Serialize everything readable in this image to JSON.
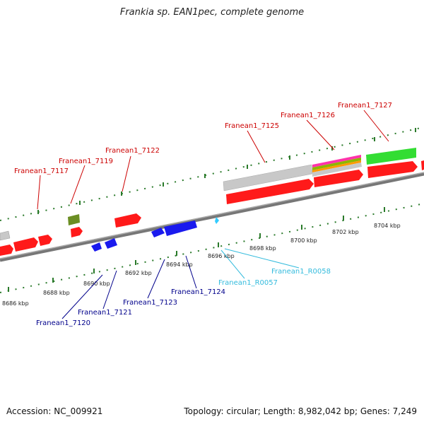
{
  "title": "Frankia sp. EAN1pec, complete genome",
  "footer": {
    "accession": "Accession: NC_009921",
    "info": "Topology: circular; Length: 8,982,042 bp; Genes: 7,249"
  },
  "colors": {
    "forward_gene": "#ff1a1a",
    "reverse_gene": "#1a1aee",
    "rna": "#33ccff",
    "pseudo": "#6b8e23",
    "gray_feature": "#c8c8c8",
    "green_feature": "#33dd33",
    "label_forward": "#cc0000",
    "label_reverse": "#00008b",
    "label_rna": "#33bbdd"
  },
  "genes_forward": [
    {
      "name": "Franean1_7117"
    },
    {
      "name": "Franean1_7119"
    },
    {
      "name": "Franean1_7122"
    },
    {
      "name": "Franean1_7125"
    },
    {
      "name": "Franean1_7126"
    },
    {
      "name": "Franean1_7127"
    }
  ],
  "genes_reverse": [
    {
      "name": "Franean1_7120"
    },
    {
      "name": "Franean1_7121"
    },
    {
      "name": "Franean1_7123"
    },
    {
      "name": "Franean1_7124"
    },
    {
      "name": "Franean1_R0057"
    },
    {
      "name": "Franean1_R0058"
    }
  ],
  "ticks": [
    "8686 kbp",
    "8688 kbp",
    "8690 kbp",
    "8692 kbp",
    "8694 kbp",
    "8696 kbp",
    "8698 kbp",
    "8700 kbp",
    "8702 kbp",
    "8704 kbp"
  ]
}
